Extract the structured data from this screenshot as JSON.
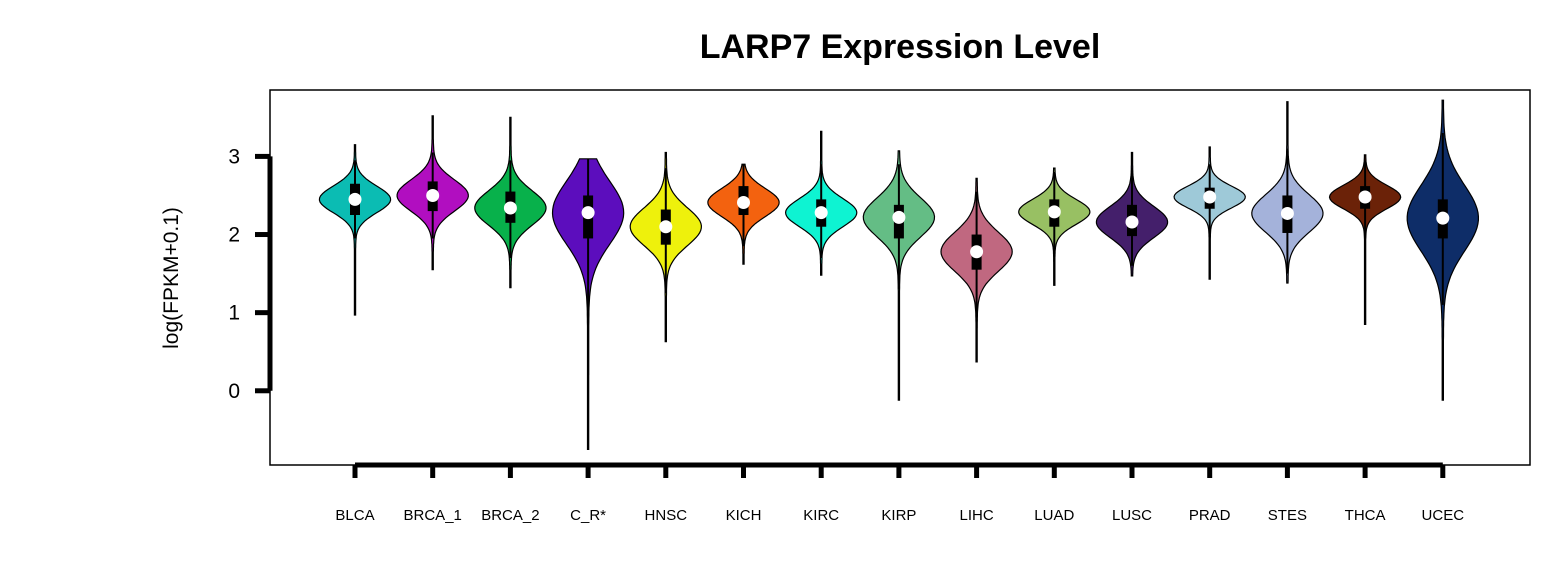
{
  "chart_data": {
    "type": "violin",
    "title": "LARP7 Expression Level",
    "ylabel": "log(FPKM+0.1)",
    "xlabel": "",
    "ylim": [
      -0.95,
      3.85
    ],
    "yticks": [
      0,
      1,
      2,
      3
    ],
    "grid": false,
    "series": [
      {
        "name": "BLCA",
        "color": "#0bbcb3",
        "median": 2.45,
        "q1": 2.25,
        "q3": 2.65,
        "wmin": 1.95,
        "wmax": 2.95,
        "min": 0.97,
        "max": 3.15,
        "spread": 0.17
      },
      {
        "name": "BRCA_1",
        "color": "#b10ec0",
        "median": 2.5,
        "q1": 2.3,
        "q3": 2.68,
        "wmin": 1.95,
        "wmax": 3.05,
        "min": 1.55,
        "max": 3.52,
        "spread": 0.2
      },
      {
        "name": "BRCA_2",
        "color": "#08b14b",
        "median": 2.34,
        "q1": 2.15,
        "q3": 2.55,
        "wmin": 1.7,
        "wmax": 2.95,
        "min": 1.32,
        "max": 3.5,
        "spread": 0.22
      },
      {
        "name": "C_R*",
        "color": "#5c0dbd",
        "median": 2.28,
        "q1": 1.95,
        "q3": 2.5,
        "wmin": 0.2,
        "wmax": 2.97,
        "min": -0.75,
        "max": 2.97,
        "spread": 0.4
      },
      {
        "name": "HNSC",
        "color": "#eef10c",
        "median": 2.1,
        "q1": 1.87,
        "q3": 2.32,
        "wmin": 1.25,
        "wmax": 2.85,
        "min": 0.63,
        "max": 3.05,
        "spread": 0.24
      },
      {
        "name": "KICH",
        "color": "#f3620f",
        "median": 2.41,
        "q1": 2.25,
        "q3": 2.62,
        "wmin": 1.85,
        "wmax": 2.9,
        "min": 1.62,
        "max": 2.9,
        "spread": 0.18
      },
      {
        "name": "KIRC",
        "color": "#0ef3d2",
        "median": 2.28,
        "q1": 2.1,
        "q3": 2.45,
        "wmin": 1.7,
        "wmax": 2.9,
        "min": 1.48,
        "max": 3.32,
        "spread": 0.18
      },
      {
        "name": "KIRP",
        "color": "#64bd85",
        "median": 2.22,
        "q1": 1.95,
        "q3": 2.38,
        "wmin": 1.3,
        "wmax": 2.9,
        "min": -0.12,
        "max": 3.07,
        "spread": 0.25
      },
      {
        "name": "LIHC",
        "color": "#c06880",
        "median": 1.78,
        "q1": 1.55,
        "q3": 2.0,
        "wmin": 0.8,
        "wmax": 2.55,
        "min": 0.37,
        "max": 2.72,
        "spread": 0.25
      },
      {
        "name": "LUAD",
        "color": "#98c063",
        "median": 2.29,
        "q1": 2.1,
        "q3": 2.45,
        "wmin": 1.65,
        "wmax": 2.8,
        "min": 1.35,
        "max": 2.85,
        "spread": 0.16
      },
      {
        "name": "LUSC",
        "color": "#441f6b",
        "median": 2.16,
        "q1": 1.98,
        "q3": 2.38,
        "wmin": 1.6,
        "wmax": 2.85,
        "min": 1.47,
        "max": 3.05,
        "spread": 0.2
      },
      {
        "name": "PRAD",
        "color": "#9ec9d8",
        "median": 2.48,
        "q1": 2.33,
        "q3": 2.6,
        "wmin": 1.95,
        "wmax": 2.9,
        "min": 1.43,
        "max": 3.12,
        "spread": 0.14
      },
      {
        "name": "STES",
        "color": "#a4b2da",
        "median": 2.27,
        "q1": 2.02,
        "q3": 2.5,
        "wmin": 1.5,
        "wmax": 3.1,
        "min": 1.38,
        "max": 3.7,
        "spread": 0.24
      },
      {
        "name": "THCA",
        "color": "#6b2208",
        "median": 2.48,
        "q1": 2.33,
        "q3": 2.62,
        "wmin": 1.95,
        "wmax": 2.95,
        "min": 0.85,
        "max": 3.02,
        "spread": 0.15
      },
      {
        "name": "UCEC",
        "color": "#0e2d68",
        "median": 2.21,
        "q1": 1.95,
        "q3": 2.45,
        "wmin": 1.1,
        "wmax": 3.3,
        "min": -0.12,
        "max": 3.72,
        "spread": 0.42
      }
    ]
  }
}
